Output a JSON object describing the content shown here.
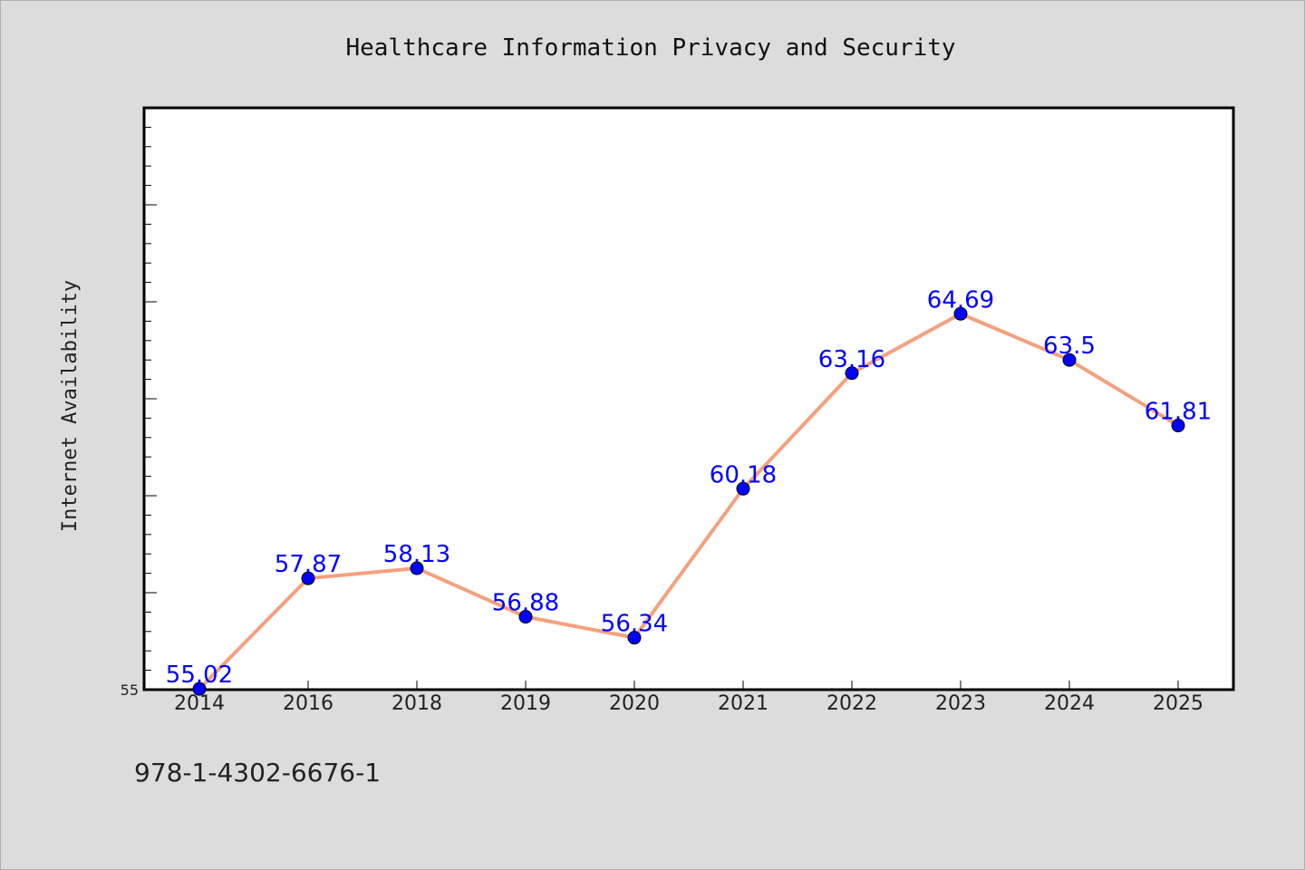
{
  "chart_data": {
    "type": "line",
    "title": "Healthcare Information Privacy and Security",
    "ylabel": "Internet Availability",
    "xlabel": "",
    "categories": [
      "2014",
      "2016",
      "2018",
      "2019",
      "2020",
      "2021",
      "2022",
      "2023",
      "2024",
      "2025"
    ],
    "series": [
      {
        "values": [
          55.02,
          57.87,
          58.13,
          56.88,
          56.34,
          60.18,
          63.16,
          64.69,
          63.5,
          61.81
        ]
      }
    ],
    "data_labels": [
      "55.02",
      "57.87",
      "58.13",
      "56.88",
      "56.34",
      "60.18",
      "63.16",
      "64.69",
      "63.5",
      "61.81"
    ],
    "ylim": [
      55,
      70
    ],
    "ytick_labels": [
      "55"
    ],
    "grid": false,
    "colors": {
      "line": "#f4a07e",
      "marker": "#0000ff",
      "label": "#0000ff",
      "background": "#dcdcdc",
      "plot_bg": "#ffffff"
    }
  },
  "footer": {
    "text": "978-1-4302-6676-1"
  }
}
